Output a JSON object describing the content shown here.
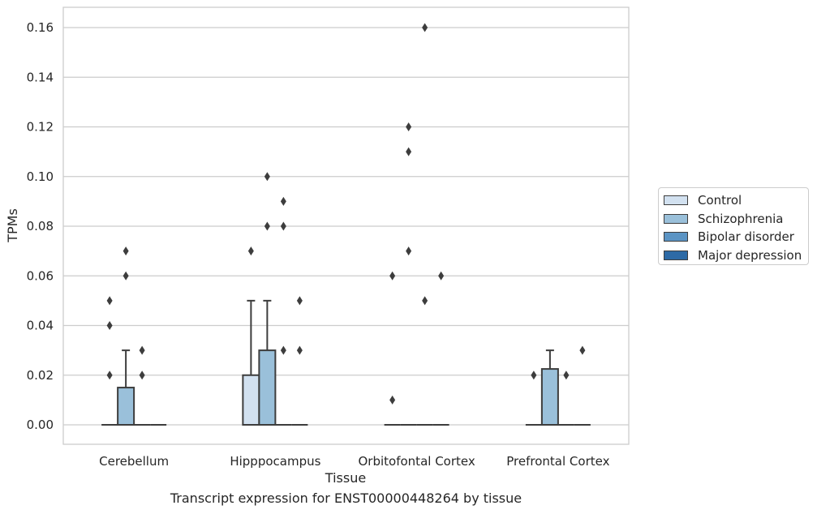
{
  "chart_data": {
    "type": "box",
    "xlabel": "Tissue",
    "ylabel": "TPMs",
    "caption": "Transcript expression for ENST00000448264 by tissue",
    "ylim": [
      -0.008,
      0.168
    ],
    "yticks": [
      0.0,
      0.02,
      0.04,
      0.06,
      0.08,
      0.1,
      0.12,
      0.14,
      0.16
    ],
    "ytick_labels": [
      "0.00",
      "0.02",
      "0.04",
      "0.06",
      "0.08",
      "0.10",
      "0.12",
      "0.14",
      "0.16"
    ],
    "grid": true,
    "legend_position": "right",
    "categories": [
      "Cerebellum",
      "Hipppocampus",
      "Orbitofontal Cortex",
      "Prefrontal Cortex"
    ],
    "series": [
      {
        "name": "Control",
        "color": "#d2e1f0"
      },
      {
        "name": "Schizophrenia",
        "color": "#9ac0da"
      },
      {
        "name": "Bipolar disorder",
        "color": "#5b94c4"
      },
      {
        "name": "Major depression",
        "color": "#2d6aa6"
      }
    ],
    "boxes": [
      [
        {
          "q1": 0,
          "median": 0,
          "q3": 0,
          "whisker_low": 0,
          "whisker_high": 0,
          "outliers": [
            0.02,
            0.04,
            0.05
          ]
        },
        {
          "q1": 0,
          "median": 0,
          "q3": 0.015,
          "whisker_low": 0,
          "whisker_high": 0.03,
          "outliers": [
            0.06,
            0.07
          ]
        },
        {
          "q1": 0,
          "median": 0,
          "q3": 0,
          "whisker_low": 0,
          "whisker_high": 0,
          "outliers": [
            0.02,
            0.03
          ]
        },
        {
          "q1": 0,
          "median": 0,
          "q3": 0,
          "whisker_low": 0,
          "whisker_high": 0,
          "outliers": []
        }
      ],
      [
        {
          "q1": 0,
          "median": 0,
          "q3": 0.02,
          "whisker_low": 0,
          "whisker_high": 0.05,
          "outliers": [
            0.07
          ]
        },
        {
          "q1": 0,
          "median": 0,
          "q3": 0.03,
          "whisker_low": 0,
          "whisker_high": 0.05,
          "outliers": [
            0.08,
            0.1
          ]
        },
        {
          "q1": 0,
          "median": 0,
          "q3": 0,
          "whisker_low": 0,
          "whisker_high": 0,
          "outliers": [
            0.03,
            0.08,
            0.09
          ]
        },
        {
          "q1": 0,
          "median": 0,
          "q3": 0,
          "whisker_low": 0,
          "whisker_high": 0,
          "outliers": [
            0.03,
            0.05
          ]
        }
      ],
      [
        {
          "q1": 0,
          "median": 0,
          "q3": 0,
          "whisker_low": 0,
          "whisker_high": 0,
          "outliers": [
            0.01,
            0.06
          ]
        },
        {
          "q1": 0,
          "median": 0,
          "q3": 0,
          "whisker_low": 0,
          "whisker_high": 0,
          "outliers": [
            0.07,
            0.11,
            0.12
          ]
        },
        {
          "q1": 0,
          "median": 0,
          "q3": 0,
          "whisker_low": 0,
          "whisker_high": 0,
          "outliers": [
            0.05,
            0.16
          ]
        },
        {
          "q1": 0,
          "median": 0,
          "q3": 0,
          "whisker_low": 0,
          "whisker_high": 0,
          "outliers": [
            0.06
          ]
        }
      ],
      [
        {
          "q1": 0,
          "median": 0,
          "q3": 0,
          "whisker_low": 0,
          "whisker_high": 0,
          "outliers": [
            0.02
          ]
        },
        {
          "q1": 0,
          "median": 0,
          "q3": 0.0225,
          "whisker_low": 0,
          "whisker_high": 0.03,
          "outliers": []
        },
        {
          "q1": 0,
          "median": 0,
          "q3": 0,
          "whisker_low": 0,
          "whisker_high": 0,
          "outliers": [
            0.02
          ]
        },
        {
          "q1": 0,
          "median": 0,
          "q3": 0,
          "whisker_low": 0,
          "whisker_high": 0,
          "outliers": [
            0.03
          ]
        }
      ]
    ]
  }
}
